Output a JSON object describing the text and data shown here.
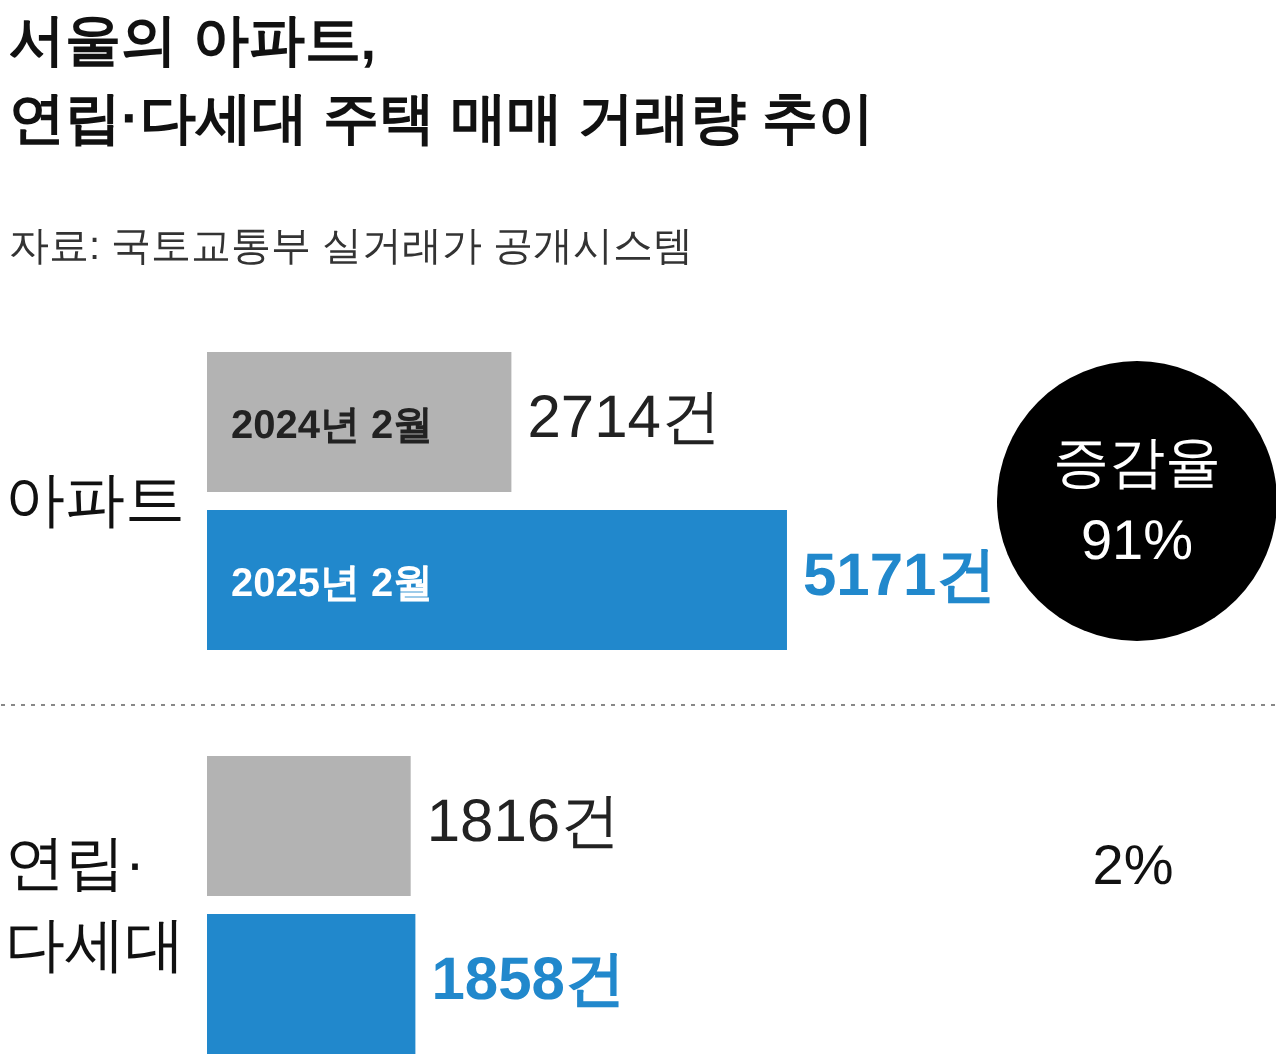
{
  "chart_data": {
    "type": "bar",
    "orientation": "horizontal",
    "title": "서울의 아파트,\n연립·다세대 주택 매매 거래량 추이",
    "subtitle": "자료: 국토교통부 실거래가 공개시스템",
    "categories": [
      "아파트",
      "연립·\n다세대"
    ],
    "series": [
      {
        "name": "2024년 2월",
        "color": "#b3b3b3",
        "values": [
          2714,
          1816
        ],
        "value_labels": [
          "2714건",
          "1816건"
        ]
      },
      {
        "name": "2025년 2월",
        "color": "#2188cc",
        "values": [
          5171,
          1858
        ],
        "value_labels": [
          "5171건",
          "1858건"
        ]
      }
    ],
    "annotations": [
      "증감율\n91%",
      "2%"
    ],
    "grid": false
  }
}
